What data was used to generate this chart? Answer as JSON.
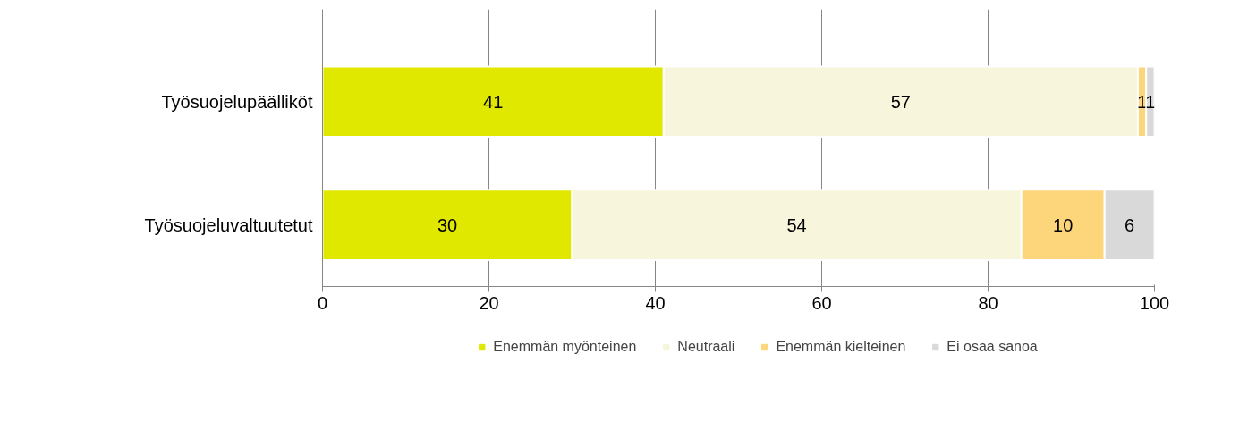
{
  "chart_data": {
    "type": "bar",
    "orientation": "horizontal",
    "stacked": true,
    "categories": [
      "Työsuojelupäälliköt",
      "Työsuojeluvaltuutetut"
    ],
    "series": [
      {
        "name": "Enemmän myönteinen",
        "color": "#e0e800",
        "values": [
          41,
          30
        ]
      },
      {
        "name": "Neutraali",
        "color": "#f7f5dc",
        "values": [
          57,
          54
        ]
      },
      {
        "name": "Enemmän kielteinen",
        "color": "#fdd57a",
        "values": [
          1,
          10
        ]
      },
      {
        "name": "Ei osaa sanoa",
        "color": "#d9d9d9",
        "values": [
          1,
          6
        ]
      }
    ],
    "xlim": [
      0,
      100
    ],
    "xticks": [
      0,
      20,
      40,
      60,
      80,
      100
    ],
    "grid": "x",
    "legend": "bottom",
    "data_labels": true
  }
}
